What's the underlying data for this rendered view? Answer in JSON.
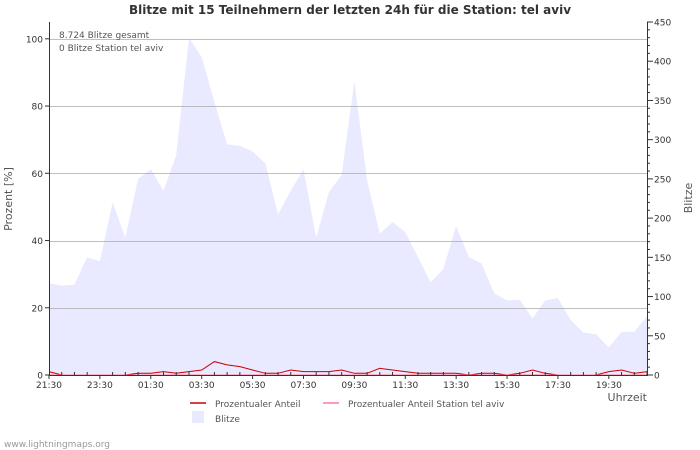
{
  "chart_data": {
    "type": "area",
    "title": "Blitze mit 15 Teilnehmern der letzten 24h für die Station: tel aviv",
    "annotations": [
      "8.724 Blitze gesamt",
      "0 Blitze Station tel aviv"
    ],
    "y_left": {
      "label": "Prozent   [%]",
      "ylim": [
        0,
        105
      ],
      "ticks": [
        0,
        20,
        40,
        60,
        80,
        100
      ]
    },
    "y_right": {
      "label": "Blitze",
      "ylim": [
        0,
        450
      ],
      "ticks": [
        0,
        50,
        100,
        150,
        200,
        250,
        300,
        350,
        400,
        450
      ]
    },
    "x_ticks": [
      "21:30",
      "23:30",
      "01:30",
      "03:30",
      "05:30",
      "07:30",
      "09:30",
      "11:30",
      "13:30",
      "15:30",
      "17:30",
      "19:30"
    ],
    "xlabel": "Uhrzeit",
    "num_intervals": 47,
    "series": [
      {
        "name": "Prozentualer Anteil",
        "axis": "left",
        "color": "#cc0000",
        "values": [
          1,
          0,
          0,
          0,
          0,
          0,
          0,
          0.5,
          0.5,
          1,
          0.5,
          1,
          1.5,
          4,
          3,
          2.5,
          1.5,
          0.5,
          0.5,
          1.5,
          1,
          1,
          1,
          1.5,
          0.5,
          0.5,
          2,
          1.5,
          1,
          0.5,
          0.5,
          0.5,
          0.5,
          0,
          0.5,
          0.5,
          0,
          0.5,
          1.5,
          0.5,
          0,
          0,
          0,
          0,
          1,
          1.5,
          0.5,
          1
        ]
      },
      {
        "name": "Prozentualer Anteil Station tel aviv",
        "axis": "left",
        "color": "#ff7b9a",
        "values": [
          0,
          0,
          0,
          0,
          0,
          0,
          0,
          0,
          0,
          0,
          0,
          0,
          0,
          0,
          0,
          0,
          0,
          0,
          0,
          0,
          0,
          0,
          0,
          0,
          0,
          0,
          0,
          0,
          0,
          0,
          0,
          0,
          0,
          0,
          0,
          0,
          0,
          0,
          0,
          0,
          0,
          0,
          0,
          0,
          0,
          0,
          0,
          0
        ]
      },
      {
        "name": "Blitze",
        "axis": "right",
        "color": "#e9e9ff",
        "values": [
          117,
          114,
          115,
          150,
          145,
          220,
          175,
          250,
          262,
          235,
          280,
          430,
          405,
          348,
          294,
          292,
          285,
          270,
          205,
          235,
          262,
          175,
          233,
          255,
          374,
          248,
          180,
          195,
          182,
          150,
          118,
          135,
          190,
          150,
          142,
          104,
          95,
          96,
          72,
          95,
          98,
          70,
          54,
          52,
          35,
          55,
          55,
          75
        ]
      }
    ],
    "grid": true
  },
  "footer": {
    "source": "www.lightningmaps.org"
  }
}
